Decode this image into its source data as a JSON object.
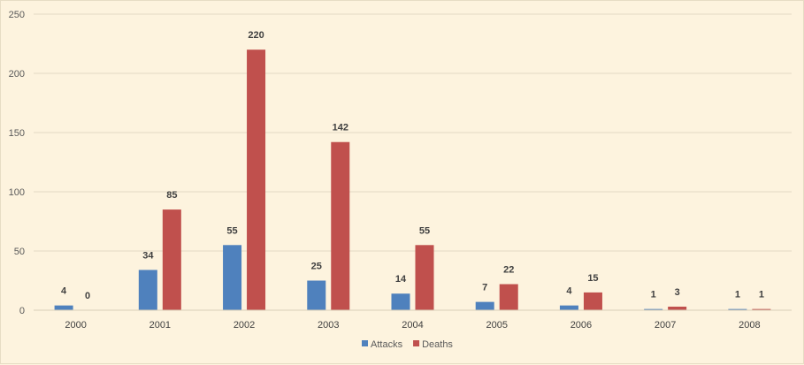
{
  "chart_data": {
    "type": "bar",
    "categories": [
      "2000",
      "2001",
      "2002",
      "2003",
      "2004",
      "2005",
      "2006",
      "2007",
      "2008"
    ],
    "series": [
      {
        "name": "Attacks",
        "values": [
          4,
          34,
          55,
          25,
          14,
          7,
          4,
          1,
          1
        ]
      },
      {
        "name": "Deaths",
        "values": [
          0,
          85,
          220,
          142,
          55,
          22,
          15,
          3,
          1
        ]
      }
    ],
    "title": "",
    "xlabel": "",
    "ylabel": "",
    "ylim": [
      0,
      250
    ],
    "yticks": [
      0,
      50,
      100,
      150,
      200,
      250
    ],
    "grid": true,
    "legend": "bottom",
    "colors": {
      "Attacks": "#4f81bd",
      "Deaths": "#c0504d",
      "grid": "#e3dac4",
      "background": "#fdf3de"
    }
  }
}
